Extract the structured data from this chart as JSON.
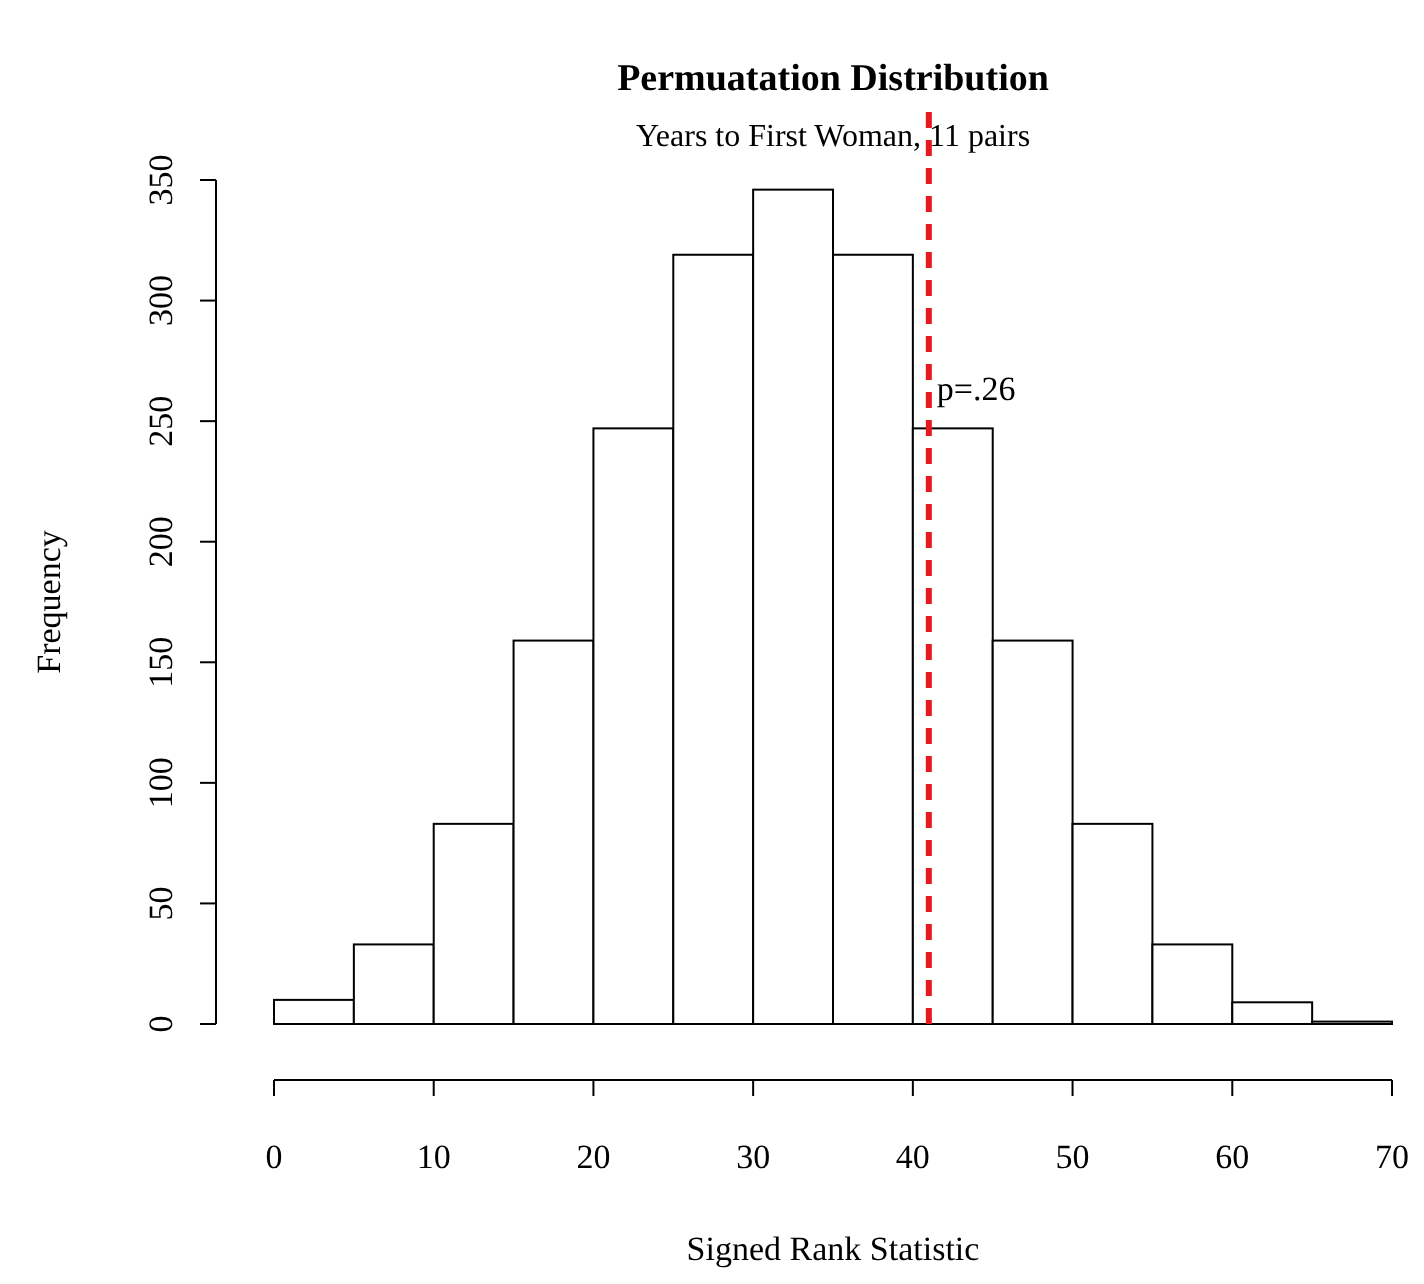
{
  "chart_data": {
    "type": "histogram",
    "title": "Permuatation Distribution",
    "subtitle": "Years to First Woman, 11 pairs",
    "xlabel": "Signed Rank Statistic",
    "ylabel": "Frequency",
    "bins": [
      0,
      5,
      10,
      15,
      20,
      25,
      30,
      35,
      40,
      45,
      50,
      55,
      60,
      65,
      70
    ],
    "values": [
      10,
      33,
      83,
      159,
      247,
      319,
      346,
      319,
      247,
      159,
      83,
      33,
      9,
      1
    ],
    "color": "#ffffff",
    "xlim": [
      0,
      70
    ],
    "xticks": [
      0,
      10,
      20,
      30,
      40,
      50,
      60,
      70
    ],
    "ylim": [
      0,
      350
    ],
    "yticks": [
      0,
      50,
      100,
      150,
      200,
      250,
      300,
      350
    ],
    "ref_lines": [
      {
        "axis": "x",
        "value": 41,
        "color": "#e8191c",
        "line_style": "dashed"
      }
    ],
    "annotations": [
      {
        "text": "p=.26",
        "x": 41.5,
        "y": 262
      }
    ]
  }
}
